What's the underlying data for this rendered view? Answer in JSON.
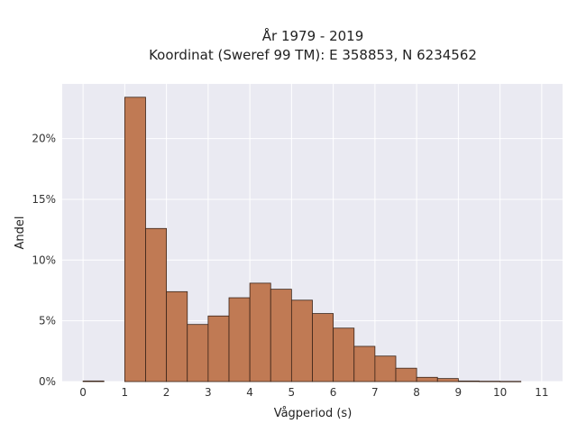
{
  "chart_data": {
    "type": "bar",
    "title": "År 1979 - 2019",
    "subtitle": "Koordinat (Sweref 99 TM): E 358853, N 6234562",
    "xlabel": "Vågperiod (s)",
    "ylabel": "Andel",
    "x_ticks": [
      "0",
      "1",
      "2",
      "3",
      "4",
      "5",
      "6",
      "7",
      "8",
      "9",
      "10",
      "11"
    ],
    "y_ticks": [
      "0%",
      "5%",
      "10%",
      "15%",
      "20%"
    ],
    "xlim": [
      -0.5,
      11.5
    ],
    "ylim": [
      0,
      24.5
    ],
    "bin_width": 0.5,
    "bins": [
      {
        "x0": 0.0,
        "value": 0.05
      },
      {
        "x0": 1.0,
        "value": 23.4
      },
      {
        "x0": 1.5,
        "value": 12.6
      },
      {
        "x0": 2.0,
        "value": 7.4
      },
      {
        "x0": 2.5,
        "value": 4.7
      },
      {
        "x0": 3.0,
        "value": 5.4
      },
      {
        "x0": 3.5,
        "value": 6.9
      },
      {
        "x0": 4.0,
        "value": 8.1
      },
      {
        "x0": 4.5,
        "value": 7.6
      },
      {
        "x0": 5.0,
        "value": 6.7
      },
      {
        "x0": 5.5,
        "value": 5.6
      },
      {
        "x0": 6.0,
        "value": 4.4
      },
      {
        "x0": 6.5,
        "value": 2.9
      },
      {
        "x0": 7.0,
        "value": 2.1
      },
      {
        "x0": 7.5,
        "value": 1.1
      },
      {
        "x0": 8.0,
        "value": 0.35
      },
      {
        "x0": 8.5,
        "value": 0.25
      },
      {
        "x0": 9.0,
        "value": 0.05
      },
      {
        "x0": 9.5,
        "value": 0.03
      },
      {
        "x0": 10.0,
        "value": 0.02
      }
    ],
    "grid": true,
    "colors": {
      "bar_fill": "#c07a54",
      "bar_edge": "#3a2418",
      "plot_background": "#eaeaf2",
      "grid": "#ffffff"
    }
  }
}
